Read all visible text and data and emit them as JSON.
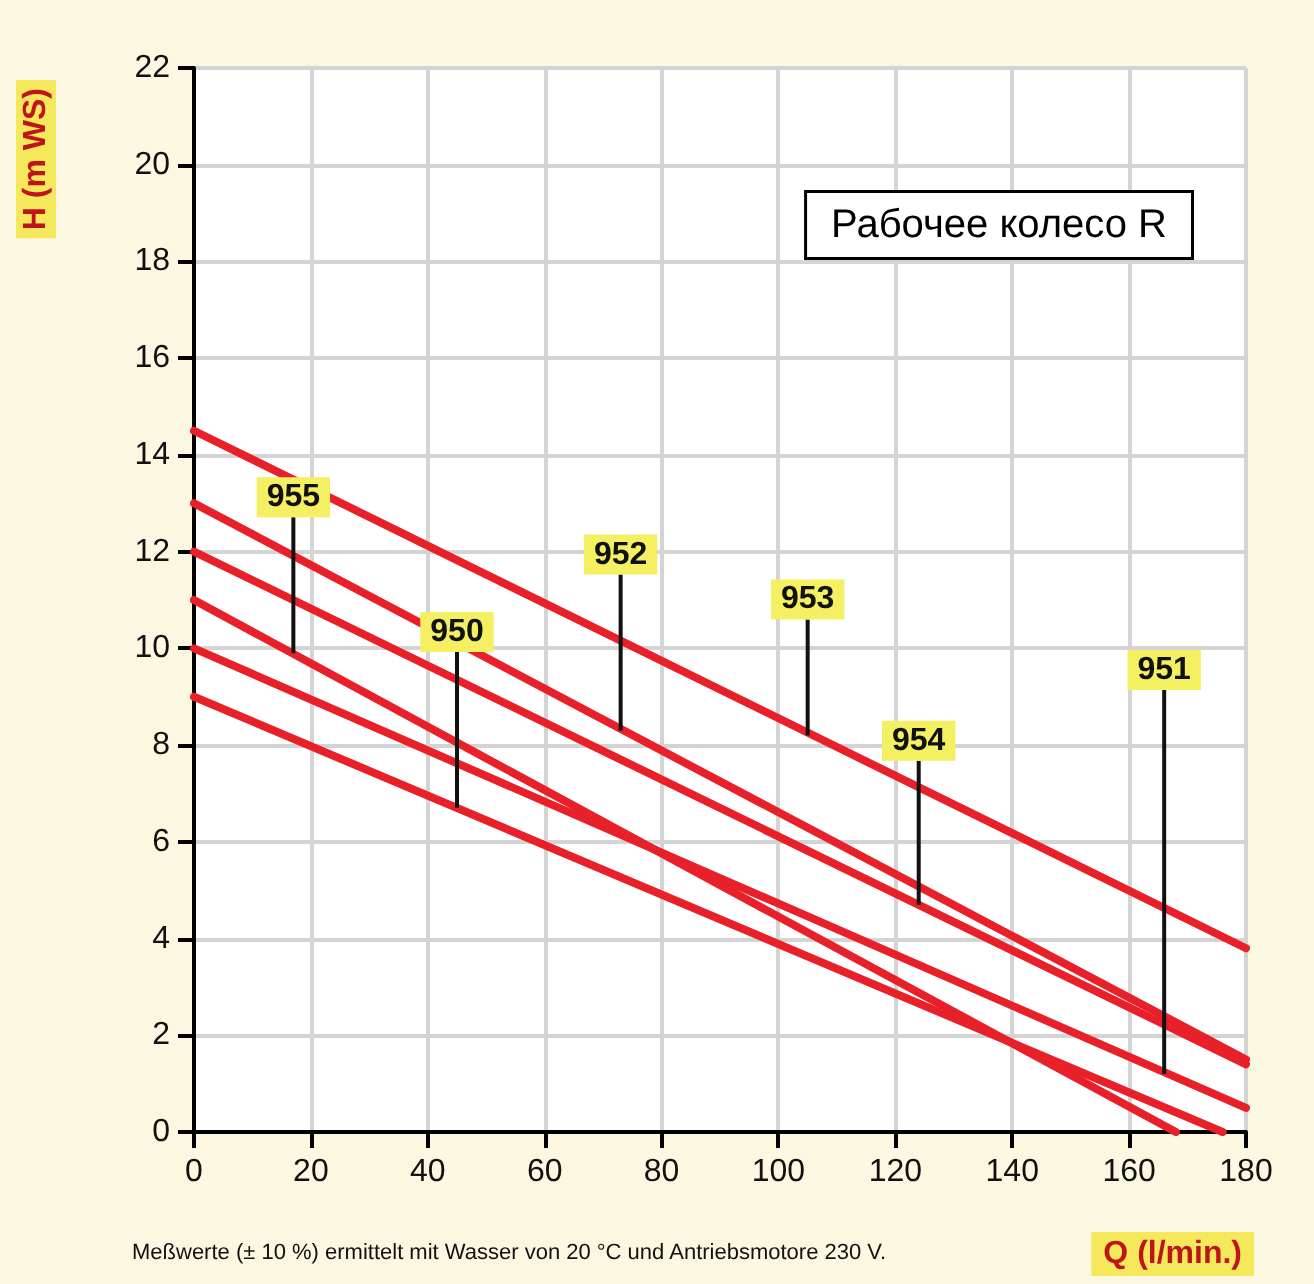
{
  "chart_data": {
    "type": "line",
    "title": "Рабочее колесо R",
    "xlabel": "Q (l/min.)",
    "ylabel": "H (m WS)",
    "xlim": [
      0,
      180
    ],
    "ylim": [
      0,
      22
    ],
    "xticks": [
      0,
      20,
      40,
      60,
      80,
      100,
      120,
      140,
      160,
      180
    ],
    "yticks": [
      0,
      2,
      4,
      6,
      8,
      10,
      12,
      14,
      16,
      18,
      20,
      22
    ],
    "grid": true,
    "marker": "none",
    "line_style": "solid",
    "series": [
      {
        "color": "#e8202a",
        "x": [
          0,
          180
        ],
        "values": [
          14.5,
          3.8
        ]
      },
      {
        "color": "#e8202a",
        "x": [
          0,
          180
        ],
        "values": [
          13,
          1.5
        ]
      },
      {
        "color": "#e8202a",
        "x": [
          0,
          180
        ],
        "values": [
          12,
          1.4
        ]
      },
      {
        "color": "#e8202a",
        "x": [
          0,
          168
        ],
        "values": [
          11,
          0
        ]
      },
      {
        "color": "#e8202a",
        "x": [
          0,
          180
        ],
        "values": [
          10,
          0.5
        ]
      },
      {
        "color": "#e8202a",
        "x": [
          0,
          176
        ],
        "values": [
          9,
          0
        ]
      }
    ],
    "annotations": [
      "Meßwerte (± 10 %) ermittelt mit Wasser von 20 °C und Antriebsmotore 230 V.",
      {
        "text": "955",
        "x": 17,
        "y": 9.9
      },
      {
        "text": "950",
        "x": 45,
        "y": 6.7
      },
      {
        "text": "952",
        "x": 73,
        "y": 8.3
      },
      {
        "text": "953",
        "x": 105,
        "y": 8.2
      },
      {
        "text": "954",
        "x": 124,
        "y": 4.7
      },
      {
        "text": "951",
        "x": 166,
        "y": 1.2
      }
    ]
  }
}
